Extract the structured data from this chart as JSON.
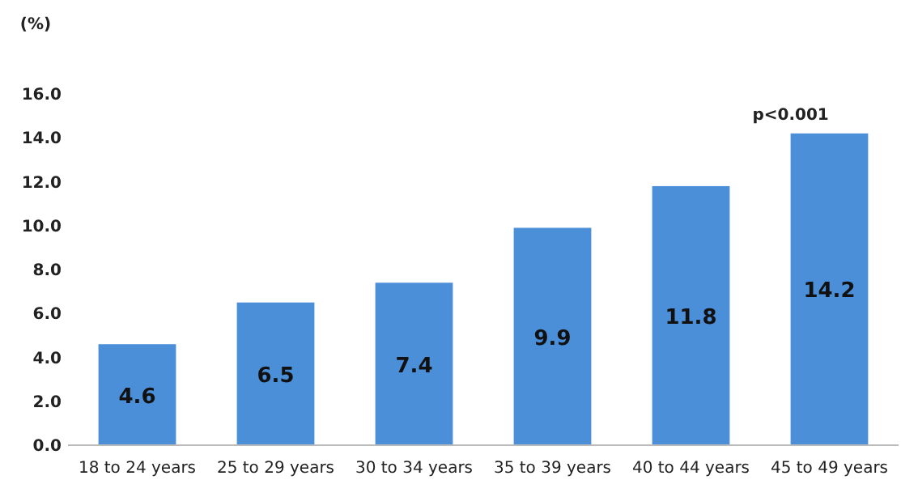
{
  "chart_data": {
    "type": "bar",
    "ylabel": "(%)",
    "categories": [
      "18 to 24 years",
      "25 to 29 years",
      "30 to 34 years",
      "35 to 39 years",
      "40 to 44 years",
      "45 to 49 years"
    ],
    "values": [
      4.6,
      6.5,
      7.4,
      9.9,
      11.8,
      14.2
    ],
    "color": "#4a8fd8",
    "data_labels": true,
    "ylim": [
      0,
      16
    ],
    "yticks": [
      {
        "value": 0,
        "label": "0.0"
      },
      {
        "value": 2,
        "label": "2.0"
      },
      {
        "value": 4,
        "label": "4.0"
      },
      {
        "value": 6,
        "label": "6.0"
      },
      {
        "value": 8,
        "label": "8.0"
      },
      {
        "value": 10,
        "label": "10.0"
      },
      {
        "value": 12,
        "label": "12.0"
      },
      {
        "value": 14,
        "label": "14.0"
      },
      {
        "value": 16,
        "label": "16.0"
      }
    ],
    "annotations": [
      "p<0.001"
    ]
  }
}
